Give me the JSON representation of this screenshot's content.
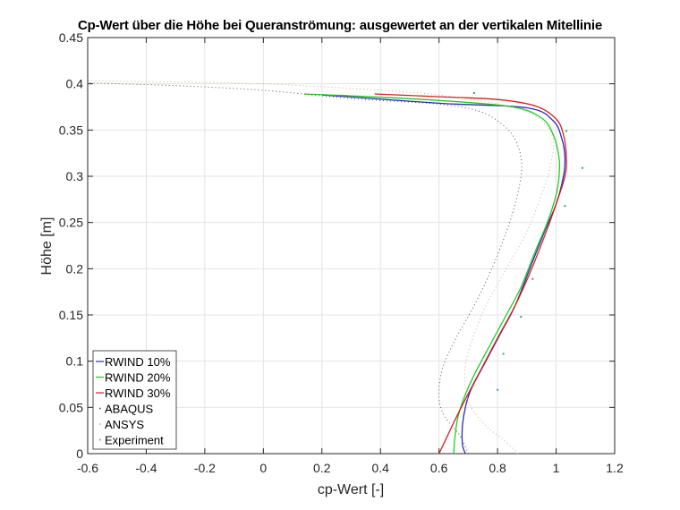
{
  "chart_data": {
    "type": "line",
    "title": "Cp-Wert über die Höhe bei Queranströmung: ausgewertet an der vertikalen Mitellinie",
    "xlabel": "cp-Wert [-]",
    "ylabel": "Höhe [m]",
    "xlim": [
      -0.6,
      1.2
    ],
    "ylim": [
      0,
      0.45
    ],
    "xticks": [
      -0.6,
      -0.4,
      -0.2,
      0,
      0.2,
      0.4,
      0.6,
      0.8,
      1,
      1.2
    ],
    "xtick_labels": [
      "-0.6",
      "-0.4",
      "-0.2",
      "0",
      "0.2",
      "0.4",
      "0.6",
      "0.8",
      "1",
      "1.2"
    ],
    "yticks": [
      0,
      0.05,
      0.1,
      0.15,
      0.2,
      0.25,
      0.3,
      0.35,
      0.4,
      0.45
    ],
    "ytick_labels": [
      "0",
      "0.05",
      "0.1",
      "0.15",
      "0.2",
      "0.25",
      "0.3",
      "0.35",
      "0.4",
      "0.45"
    ],
    "grid": true,
    "legend_position": "lower left",
    "series": [
      {
        "name": "RWIND 10%",
        "color": "#2b2bb8",
        "style": "solid",
        "points": [
          [
            0.69,
            0
          ],
          [
            0.68,
            0.01
          ],
          [
            0.68,
            0.03
          ],
          [
            0.69,
            0.05
          ],
          [
            0.71,
            0.07
          ],
          [
            0.76,
            0.1
          ],
          [
            0.81,
            0.13
          ],
          [
            0.86,
            0.16
          ],
          [
            0.91,
            0.2
          ],
          [
            0.96,
            0.24
          ],
          [
            1.0,
            0.27
          ],
          [
            1.025,
            0.3
          ],
          [
            1.03,
            0.32
          ],
          [
            1.02,
            0.34
          ],
          [
            0.99,
            0.36
          ],
          [
            0.9,
            0.374
          ],
          [
            0.6,
            0.379
          ],
          [
            0.2,
            0.388
          ]
        ]
      },
      {
        "name": "RWIND 20%",
        "color": "#22cc22",
        "style": "solid",
        "points": [
          [
            0.65,
            0
          ],
          [
            0.655,
            0.02
          ],
          [
            0.665,
            0.04
          ],
          [
            0.685,
            0.06
          ],
          [
            0.72,
            0.085
          ],
          [
            0.77,
            0.115
          ],
          [
            0.83,
            0.15
          ],
          [
            0.88,
            0.18
          ],
          [
            0.93,
            0.22
          ],
          [
            0.97,
            0.25
          ],
          [
            1.0,
            0.28
          ],
          [
            1.01,
            0.3
          ],
          [
            1.01,
            0.32
          ],
          [
            0.99,
            0.345
          ],
          [
            0.95,
            0.363
          ],
          [
            0.85,
            0.375
          ],
          [
            0.6,
            0.382
          ],
          [
            0.3,
            0.387
          ],
          [
            0.14,
            0.389
          ]
        ]
      },
      {
        "name": "RWIND 30%",
        "color": "#d42020",
        "style": "solid",
        "points": [
          [
            0.6,
            0
          ],
          [
            0.63,
            0.02
          ],
          [
            0.66,
            0.04
          ],
          [
            0.7,
            0.065
          ],
          [
            0.75,
            0.095
          ],
          [
            0.8,
            0.125
          ],
          [
            0.86,
            0.16
          ],
          [
            0.91,
            0.195
          ],
          [
            0.96,
            0.235
          ],
          [
            1.0,
            0.27
          ],
          [
            1.03,
            0.3
          ],
          [
            1.035,
            0.32
          ],
          [
            1.025,
            0.345
          ],
          [
            1.0,
            0.362
          ],
          [
            0.93,
            0.376
          ],
          [
            0.8,
            0.383
          ],
          [
            0.6,
            0.386
          ],
          [
            0.38,
            0.389
          ]
        ]
      },
      {
        "name": "ABAQUS",
        "color": "#555555",
        "style": "dotted",
        "points": [
          [
            0.7,
            0
          ],
          [
            0.67,
            0.02
          ],
          [
            0.62,
            0.04
          ],
          [
            0.6,
            0.06
          ],
          [
            0.61,
            0.09
          ],
          [
            0.65,
            0.12
          ],
          [
            0.72,
            0.16
          ],
          [
            0.78,
            0.2
          ],
          [
            0.83,
            0.24
          ],
          [
            0.86,
            0.27
          ],
          [
            0.88,
            0.3
          ],
          [
            0.88,
            0.32
          ],
          [
            0.86,
            0.34
          ],
          [
            0.82,
            0.355
          ],
          [
            0.74,
            0.37
          ],
          [
            0.6,
            0.378
          ],
          [
            0.3,
            0.384
          ],
          [
            0.0,
            0.393
          ],
          [
            -0.3,
            0.398
          ],
          [
            -0.6,
            0.401
          ]
        ]
      },
      {
        "name": "ANSYS",
        "color": "#c8b090",
        "style": "dotted",
        "points": [
          [
            0.87,
            0
          ],
          [
            0.82,
            0.015
          ],
          [
            0.76,
            0.03
          ],
          [
            0.71,
            0.05
          ],
          [
            0.69,
            0.07
          ],
          [
            0.69,
            0.095
          ],
          [
            0.71,
            0.12
          ],
          [
            0.76,
            0.16
          ],
          [
            0.83,
            0.2
          ],
          [
            0.9,
            0.24
          ],
          [
            0.95,
            0.28
          ],
          [
            0.98,
            0.31
          ],
          [
            0.99,
            0.34
          ],
          [
            0.95,
            0.36
          ],
          [
            0.85,
            0.375
          ],
          [
            0.6,
            0.388
          ],
          [
            0.3,
            0.395
          ],
          [
            0.0,
            0.4
          ],
          [
            -0.3,
            0.402
          ],
          [
            -0.6,
            0.403
          ]
        ]
      },
      {
        "name": "Experiment",
        "color": "#33a0a0",
        "style": "markers",
        "points": [
          [
            0.8,
            0.069
          ],
          [
            0.82,
            0.108
          ],
          [
            0.88,
            0.148
          ],
          [
            0.92,
            0.189
          ],
          [
            1.03,
            0.268
          ],
          [
            1.09,
            0.309
          ],
          [
            1.035,
            0.349
          ],
          [
            0.72,
            0.39
          ]
        ]
      }
    ]
  }
}
